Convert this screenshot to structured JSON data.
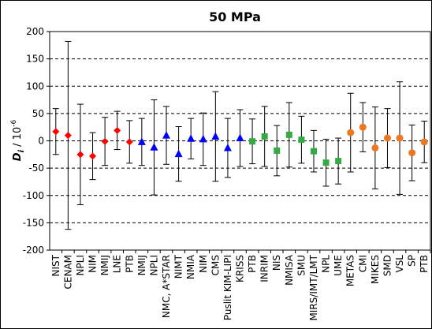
{
  "chart_data": {
    "type": "scatter",
    "title": "50 MPa",
    "ylabel": {
      "main": "D",
      "sub": "i",
      "suffix": " / 10",
      "exp": "-6"
    },
    "ylim": [
      -200,
      200
    ],
    "yticks": [
      -200,
      -150,
      -100,
      -50,
      0,
      50,
      100,
      150,
      200
    ],
    "grid": "horizontal dashed",
    "legend": "none",
    "points": [
      {
        "label": "NIST",
        "y": 17,
        "err": 42,
        "marker": "diamond",
        "color": "#ff0000"
      },
      {
        "label": "CENAM",
        "y": 10,
        "err": 172,
        "marker": "diamond",
        "color": "#ff0000"
      },
      {
        "label": "NPLI",
        "y": -25,
        "err": 92,
        "marker": "diamond",
        "color": "#ff0000"
      },
      {
        "label": "NIM",
        "y": -28,
        "err": 43,
        "marker": "diamond",
        "color": "#ff0000"
      },
      {
        "label": "NMIJ",
        "y": -1,
        "err": 44,
        "marker": "diamond",
        "color": "#ff0000"
      },
      {
        "label": "LNE",
        "y": 19,
        "err": 35,
        "marker": "diamond",
        "color": "#ff0000"
      },
      {
        "label": "PTB",
        "y": -2,
        "err": 39,
        "marker": "diamond",
        "color": "#ff0000"
      },
      {
        "label": "NMIJ",
        "y": -2,
        "err": 43,
        "marker": "triangle",
        "color": "#0000ff"
      },
      {
        "label": "NPLI",
        "y": -12,
        "err": 87,
        "marker": "triangle",
        "color": "#0000ff"
      },
      {
        "label": "NMC, A*STAR",
        "y": 10,
        "err": 53,
        "marker": "triangle",
        "color": "#0000ff"
      },
      {
        "label": "NIMT",
        "y": -24,
        "err": 50,
        "marker": "triangle",
        "color": "#0000ff"
      },
      {
        "label": "NMIA",
        "y": 4,
        "err": 37,
        "marker": "triangle",
        "color": "#0000ff"
      },
      {
        "label": "NIM",
        "y": 3,
        "err": 48,
        "marker": "triangle",
        "color": "#0000ff"
      },
      {
        "label": "CMS",
        "y": 8,
        "err": 82,
        "marker": "triangle",
        "color": "#0000ff"
      },
      {
        "label": "Puslit KIM-LIPI",
        "y": -13,
        "err": 54,
        "marker": "triangle",
        "color": "#0000ff"
      },
      {
        "label": "KRISS",
        "y": 5,
        "err": 52,
        "marker": "triangle",
        "color": "#0000ff"
      },
      {
        "label": "PTB",
        "y": -1,
        "err": 41,
        "marker": "square",
        "color": "#33aa44"
      },
      {
        "label": "INRIM",
        "y": 8,
        "err": 55,
        "marker": "square",
        "color": "#33aa44"
      },
      {
        "label": "NIS",
        "y": -18,
        "err": 46,
        "marker": "square",
        "color": "#33aa44"
      },
      {
        "label": "NMISA",
        "y": 11,
        "err": 59,
        "marker": "square",
        "color": "#33aa44"
      },
      {
        "label": "SMU",
        "y": 2,
        "err": 43,
        "marker": "square",
        "color": "#33aa44"
      },
      {
        "label": "MIRS/IMT/LMT",
        "y": -19,
        "err": 38,
        "marker": "square",
        "color": "#33aa44"
      },
      {
        "label": "NPL",
        "y": -40,
        "err": 43,
        "marker": "square",
        "color": "#33aa44"
      },
      {
        "label": "UME",
        "y": -37,
        "err": 42,
        "marker": "square",
        "color": "#33aa44"
      },
      {
        "label": "METAS",
        "y": 15,
        "err": 72,
        "marker": "circle",
        "color": "#ee7722"
      },
      {
        "label": "CMI",
        "y": 25,
        "err": 45,
        "marker": "circle",
        "color": "#ee7722"
      },
      {
        "label": "MIKES",
        "y": -13,
        "err": 75,
        "marker": "circle",
        "color": "#ee7722"
      },
      {
        "label": "SMD",
        "y": 5,
        "err": 54,
        "marker": "circle",
        "color": "#ee7722"
      },
      {
        "label": "VSL",
        "y": 5,
        "err": 103,
        "marker": "circle",
        "color": "#ee7722"
      },
      {
        "label": "SP",
        "y": -22,
        "err": 51,
        "marker": "circle",
        "color": "#ee7722"
      },
      {
        "label": "PTB",
        "y": -2,
        "err": 38,
        "marker": "circle",
        "color": "#ee7722"
      }
    ]
  }
}
